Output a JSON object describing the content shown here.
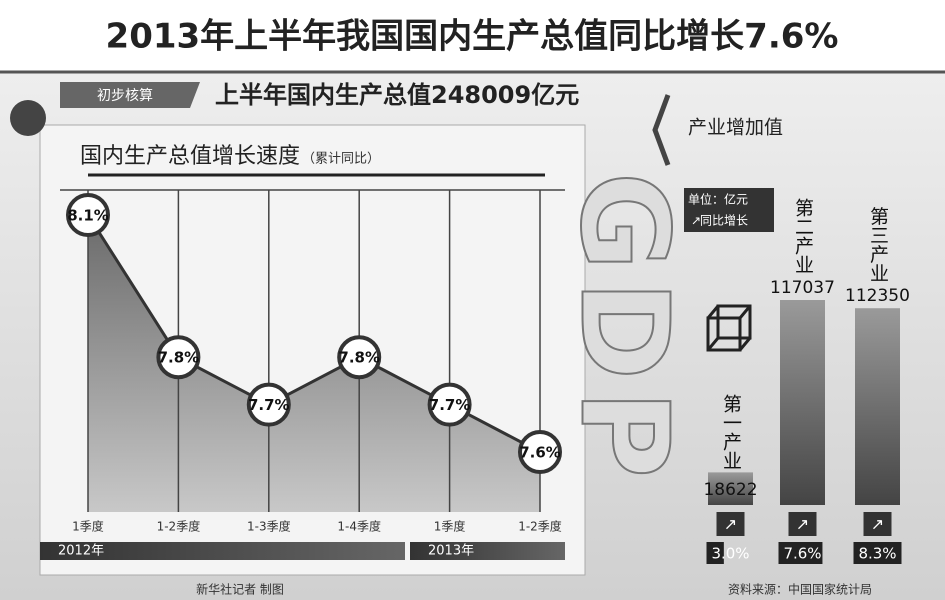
{
  "title": "2013年上半年我国国内生产总值同比增长7.6%",
  "tag": "初步核算",
  "headline": "上半年国内生产总值248009亿元",
  "logo": "GDP",
  "credit": "新华社记者 制图",
  "source": "资料来源：中国国家统计局",
  "chart_data": [
    {
      "type": "line",
      "title": "国内生产总值增长速度",
      "subtitle": "（累计同比）",
      "categories": [
        "1季度",
        "1-2季度",
        "1-3季度",
        "1-4季度",
        "1季度",
        "1-2季度"
      ],
      "values": [
        8.1,
        7.8,
        7.7,
        7.8,
        7.7,
        7.6
      ],
      "value_labels": [
        "8.1%",
        "7.8%",
        "7.7%",
        "7.8%",
        "7.7%",
        "7.6%"
      ],
      "groups": [
        "2012年",
        "2013年"
      ],
      "grid": true
    },
    {
      "type": "bar",
      "title": "产业增加值",
      "unit": "单位：亿元",
      "growth_name": "同比增长",
      "categories": [
        "第一产业",
        "第二产业",
        "第三产业"
      ],
      "values": [
        18622,
        117037,
        112350
      ],
      "growth": [
        3.0,
        7.6,
        8.3
      ],
      "growth_labels": [
        "3.0%",
        "7.6%",
        "8.3%"
      ]
    }
  ]
}
